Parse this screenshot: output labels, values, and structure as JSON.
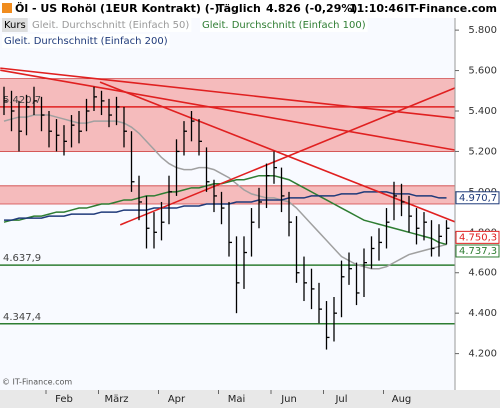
{
  "chart_data": {
    "type": "ohlc",
    "title": "Öl - US Rohöl (1EUR Kontrakt) (-)",
    "period": "Täglich",
    "last": "4.826 (-0,29%)",
    "time": "11:10:46",
    "source": "IT-Finance.com",
    "copyright": "© IT-Finance.com",
    "categories": [
      null,
      null,
      null,
      null,
      null,
      null,
      null,
      null,
      "Feb",
      null,
      null,
      null,
      null,
      null,
      null,
      "März",
      null,
      null,
      null,
      null,
      null,
      null,
      null,
      "Apr",
      null,
      null,
      null,
      null,
      null,
      null,
      null,
      "Mai",
      null,
      null,
      null,
      null,
      null,
      null,
      "Jun",
      null,
      null,
      null,
      null,
      null,
      null,
      "Jul",
      null,
      null,
      null,
      null,
      null,
      null,
      null,
      "Aug",
      null,
      null,
      null,
      null,
      null,
      null
    ],
    "series": [
      {
        "name": "Kurs",
        "color": "#000000",
        "high": [
          5.52,
          5.5,
          5.45,
          5.48,
          5.52,
          5.47,
          5.4,
          5.36,
          5.33,
          5.38,
          5.4,
          5.46,
          5.52,
          5.5,
          5.46,
          5.47,
          5.42,
          5.3,
          5.08,
          4.98,
          4.9,
          4.95,
          5.08,
          5.26,
          5.35,
          5.4,
          5.36,
          5.22,
          5.06,
          5.0,
          4.95,
          4.78,
          4.78,
          4.92,
          5.02,
          5.14,
          5.2,
          5.12,
          5.0,
          4.88,
          4.68,
          4.62,
          4.55,
          4.46,
          4.48,
          4.66,
          4.7,
          4.65,
          4.72,
          4.78,
          4.82,
          4.92,
          5.05,
          5.04,
          4.98,
          4.92,
          4.9,
          4.86,
          4.84,
          4.86
        ],
        "low": [
          5.38,
          5.3,
          5.2,
          5.28,
          5.38,
          5.3,
          5.22,
          5.2,
          5.18,
          5.22,
          5.24,
          5.3,
          5.4,
          5.38,
          5.32,
          5.33,
          5.22,
          5.0,
          4.86,
          4.72,
          4.72,
          4.76,
          4.84,
          4.98,
          5.18,
          5.25,
          5.18,
          5.0,
          4.9,
          4.84,
          4.68,
          4.4,
          4.52,
          4.68,
          4.82,
          4.92,
          5.04,
          4.9,
          4.78,
          4.55,
          4.46,
          4.42,
          4.35,
          4.22,
          4.26,
          4.38,
          4.54,
          4.44,
          4.48,
          4.62,
          4.66,
          4.72,
          4.86,
          4.88,
          4.8,
          4.74,
          4.76,
          4.68,
          4.68,
          4.74
        ],
        "close": [
          5.45,
          5.4,
          5.3,
          5.42,
          5.45,
          5.38,
          5.3,
          5.28,
          5.25,
          5.33,
          5.3,
          5.4,
          5.47,
          5.45,
          5.38,
          5.42,
          5.3,
          5.05,
          4.95,
          4.82,
          4.8,
          4.85,
          5.0,
          5.2,
          5.3,
          5.35,
          5.25,
          5.05,
          4.98,
          4.92,
          4.75,
          4.55,
          4.7,
          4.85,
          4.95,
          5.08,
          5.12,
          4.98,
          4.85,
          4.6,
          4.55,
          4.52,
          4.42,
          4.28,
          4.4,
          4.58,
          4.62,
          4.5,
          4.65,
          4.72,
          4.75,
          4.85,
          4.98,
          4.95,
          4.88,
          4.82,
          4.85,
          4.72,
          4.78,
          4.82
        ]
      },
      {
        "name": "Gleit. Durchschnitt (Einfach 50)",
        "color": "#a0a0a0",
        "values": [
          5.35,
          5.36,
          5.37,
          5.37,
          5.38,
          5.38,
          5.38,
          5.37,
          5.36,
          5.35,
          5.34,
          5.34,
          5.35,
          5.35,
          5.35,
          5.35,
          5.34,
          5.32,
          5.29,
          5.25,
          5.21,
          5.17,
          5.14,
          5.12,
          5.11,
          5.11,
          5.12,
          5.12,
          5.11,
          5.09,
          5.07,
          5.04,
          5.01,
          4.99,
          4.98,
          4.97,
          4.97,
          4.96,
          4.95,
          4.92,
          4.88,
          4.84,
          4.8,
          4.76,
          4.72,
          4.68,
          4.66,
          4.64,
          4.63,
          4.62,
          4.62,
          4.63,
          4.65,
          4.67,
          4.69,
          4.7,
          4.71,
          4.72,
          4.73,
          4.74
        ]
      },
      {
        "name": "Gleit. Durchschnitt (Einfach 100)",
        "color": "#2e7d32",
        "values": [
          4.85,
          4.86,
          4.86,
          4.87,
          4.88,
          4.88,
          4.89,
          4.9,
          4.9,
          4.91,
          4.92,
          4.92,
          4.93,
          4.94,
          4.94,
          4.95,
          4.96,
          4.96,
          4.97,
          4.98,
          4.98,
          4.99,
          5.0,
          5.0,
          5.01,
          5.02,
          5.02,
          5.03,
          5.04,
          5.04,
          5.05,
          5.06,
          5.06,
          5.07,
          5.08,
          5.08,
          5.08,
          5.07,
          5.06,
          5.04,
          5.02,
          5.0,
          4.98,
          4.96,
          4.94,
          4.92,
          4.9,
          4.88,
          4.86,
          4.85,
          4.84,
          4.83,
          4.82,
          4.81,
          4.8,
          4.79,
          4.78,
          4.77,
          4.75,
          4.74
        ]
      },
      {
        "name": "Gleit. Durchschnitt (Einfach 200)",
        "color": "#1f3a7a",
        "values": [
          4.86,
          4.86,
          4.87,
          4.87,
          4.87,
          4.87,
          4.88,
          4.88,
          4.88,
          4.89,
          4.89,
          4.89,
          4.89,
          4.9,
          4.9,
          4.9,
          4.91,
          4.91,
          4.91,
          4.91,
          4.92,
          4.92,
          4.92,
          4.92,
          4.93,
          4.93,
          4.93,
          4.94,
          4.94,
          4.94,
          4.94,
          4.95,
          4.95,
          4.95,
          4.96,
          4.96,
          4.96,
          4.96,
          4.97,
          4.97,
          4.97,
          4.98,
          4.98,
          4.98,
          4.98,
          4.99,
          4.99,
          4.99,
          5.0,
          5.0,
          5.0,
          5.0,
          4.99,
          4.99,
          4.99,
          4.98,
          4.98,
          4.98,
          4.97,
          4.97
        ]
      }
    ],
    "ylim": [
      4.02,
      5.86
    ],
    "yticks": [
      {
        "value": 4.2,
        "label": "4.200"
      },
      {
        "value": 4.4,
        "label": "4.400"
      },
      {
        "value": 4.6,
        "label": "4.600"
      },
      {
        "value": 4.8,
        "label": "4.800"
      },
      {
        "value": 5.0,
        "label": "5.000"
      },
      {
        "value": 5.2,
        "label": "5.200"
      },
      {
        "value": 5.4,
        "label": "5.400"
      },
      {
        "value": 5.6,
        "label": "5.600"
      },
      {
        "value": 5.8,
        "label": "5.800"
      }
    ],
    "bands": [
      {
        "from": 5.2,
        "to": 5.56,
        "color": "#f4a6a6"
      },
      {
        "from": 4.94,
        "to": 5.03,
        "color": "#f4a6a6"
      }
    ],
    "hlines": [
      {
        "value": 5.4207,
        "label": "5.420,7",
        "color": "#e02020"
      },
      {
        "value": 4.6379,
        "label": "4.637,9",
        "color": "#2e7d32"
      },
      {
        "value": 4.3474,
        "label": "4.347,4",
        "color": "#2e7d32"
      }
    ],
    "trendlines": [
      {
        "x": [
          -0.5,
          60.1
        ],
        "y": [
          5.612,
          5.365
        ],
        "color": "#e02020"
      },
      {
        "x": [
          -0.5,
          60.1
        ],
        "y": [
          5.602,
          5.207
        ],
        "color": "#e02020"
      },
      {
        "x": [
          12.8,
          60.1
        ],
        "y": [
          5.543,
          4.852
        ],
        "color": "#e02020"
      },
      {
        "x": [
          15.5,
          60.1
        ],
        "y": [
          4.837,
          5.514
        ],
        "color": "#e02020"
      }
    ],
    "price_tags": [
      {
        "value": 4.9707,
        "label": "4.970,7",
        "color": "#1f3a7a"
      },
      {
        "value": 4.7503,
        "label": "4.750,3",
        "color": "#e02020"
      },
      {
        "value": 4.7373,
        "label": "4.737,3",
        "color": "#2e7d32"
      }
    ]
  }
}
